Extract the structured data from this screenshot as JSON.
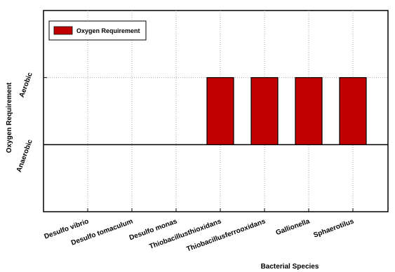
{
  "chart_data": {
    "type": "bar",
    "title": "",
    "xlabel": "Bacterial Species",
    "ylabel": "Oxygen Requirement",
    "categories": [
      "Desulfo vibrio",
      "Desulfo tomaculum",
      "Desulfo monas",
      "Thiobacillusthioxidans",
      "Thiobacillusferrooxidans",
      "Gallionella",
      "Sphaerotilus"
    ],
    "series": [
      {
        "name": "Oxygen Requirement",
        "values": [
          0,
          0,
          0,
          1,
          1,
          1,
          1
        ]
      }
    ],
    "yticks": [
      {
        "value": 0,
        "label": "Anaerobic"
      },
      {
        "value": 1,
        "label": "Aerobic"
      }
    ],
    "ylim": [
      -1,
      2
    ],
    "grid": true,
    "legend_position": "top-left",
    "bar_color": "#c00000"
  }
}
